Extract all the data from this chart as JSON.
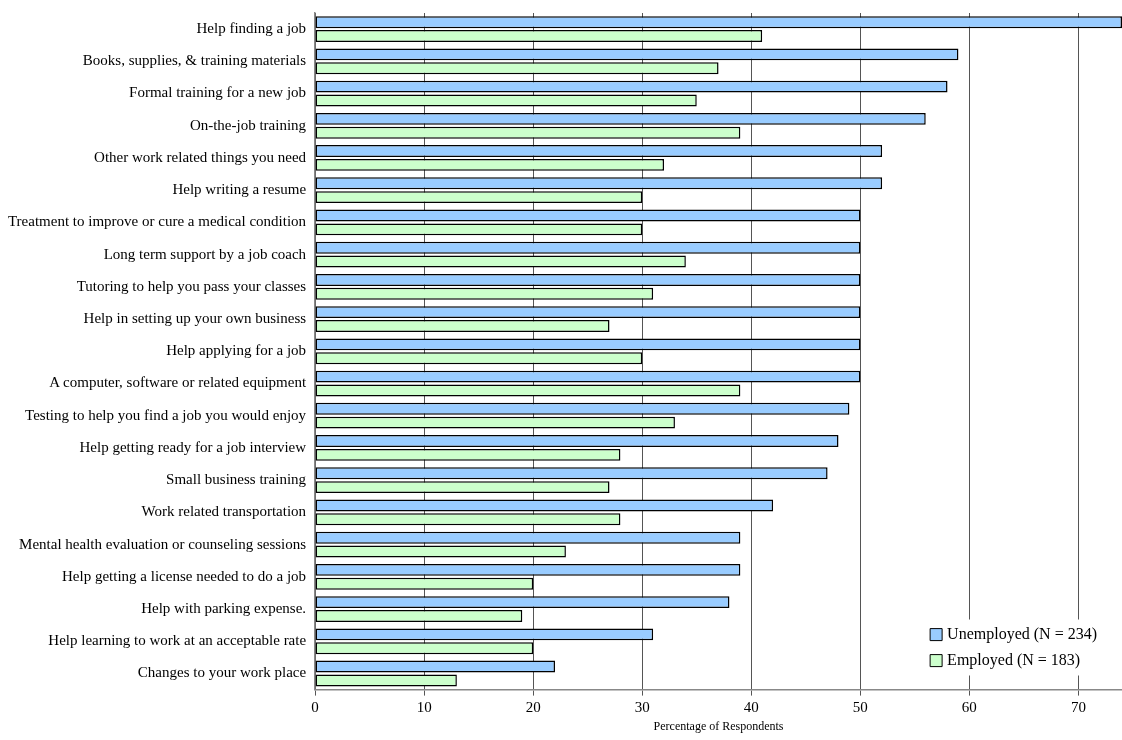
{
  "chart_data": {
    "type": "bar",
    "orientation": "horizontal",
    "xlabel": "Percentage of Respondents",
    "categories": [
      "Help finding a job",
      "Books, supplies, & training materials",
      "Formal training for a new job",
      "On-the-job training",
      "Other work related things you need",
      "Help writing a resume",
      "Treatment to improve or cure a medical condition",
      "Long term support by a job coach",
      "Tutoring to help you pass your classes",
      "Help in setting up your own business",
      "Help applying for a job",
      "A computer, software or related equipment",
      "Testing to help you find a job you would enjoy",
      "Help getting ready for a job interview",
      "Small business training",
      "Work related transportation",
      "Mental health evaluation or counseling sessions",
      "Help getting a license needed to do a job",
      "Help with parking expense.",
      "Help learning to work at an acceptable rate",
      "Changes to your work place"
    ],
    "series": [
      {
        "name": "Unemployed (N = 234)",
        "color": "#99ccff",
        "values": [
          74,
          59,
          58,
          56,
          52,
          52,
          50,
          50,
          50,
          50,
          50,
          50,
          49,
          48,
          47,
          42,
          39,
          39,
          38,
          31,
          22
        ]
      },
      {
        "name": "Employed (N = 183)",
        "color": "#ccffcc",
        "values": [
          41,
          37,
          35,
          39,
          32,
          30,
          30,
          34,
          31,
          27,
          30,
          39,
          33,
          28,
          27,
          28,
          23,
          20,
          19,
          20,
          13
        ]
      }
    ],
    "xlim": [
      0,
      74
    ],
    "xticks": [
      0,
      10,
      20,
      30,
      40,
      50,
      60,
      70
    ],
    "grid": "x",
    "legend": "bottom right"
  }
}
